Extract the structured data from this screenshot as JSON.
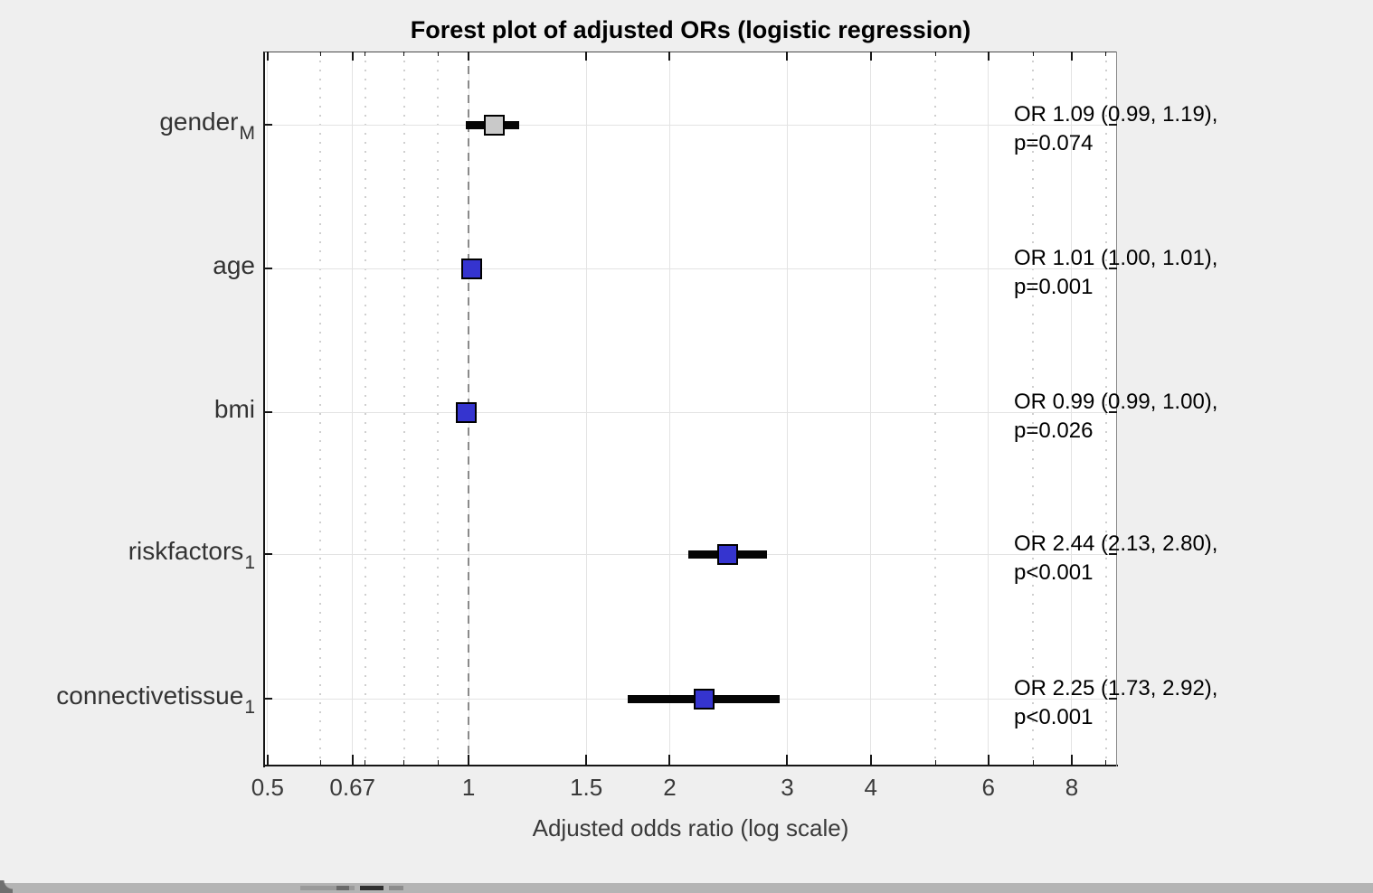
{
  "chart_data": {
    "type": "scatter",
    "subtype": "forest-plot",
    "title": "Forest plot of adjusted ORs (logistic regression)",
    "xlabel": "Adjusted odds ratio (log scale)",
    "ylabel": "",
    "x_scale": "log",
    "xlim": [
      0.494,
      9.35
    ],
    "grid": true,
    "x_major_ticks": [
      0.5,
      0.67,
      1,
      1.5,
      2,
      3,
      4,
      6,
      8
    ],
    "x_major_tick_labels": [
      "0.5",
      "0.67",
      "1",
      "1.5",
      "2",
      "3",
      "4",
      "6",
      "8"
    ],
    "x_minor_ticks": [
      0.6,
      0.7,
      0.8,
      0.9,
      5,
      7,
      9
    ],
    "reference_line_x": 1,
    "rows": [
      {
        "label": "gender",
        "label_subscript": "M",
        "or": 1.09,
        "ci_low": 0.99,
        "ci_high": 1.19,
        "annotation_line1": "OR 1.09 (0.99, 1.19),",
        "annotation_line2": "p=0.074",
        "marker_color": "#c9c9c9"
      },
      {
        "label": "age",
        "label_subscript": "",
        "or": 1.01,
        "ci_low": 1.0,
        "ci_high": 1.01,
        "annotation_line1": "OR 1.01 (1.00, 1.01),",
        "annotation_line2": "p=0.001",
        "marker_color": "#3534cf"
      },
      {
        "label": "bmi",
        "label_subscript": "",
        "or": 0.99,
        "ci_low": 0.99,
        "ci_high": 1.0,
        "annotation_line1": "OR 0.99 (0.99, 1.00),",
        "annotation_line2": "p=0.026",
        "marker_color": "#3534cf"
      },
      {
        "label": "riskfactors",
        "label_subscript": "1",
        "or": 2.44,
        "ci_low": 2.13,
        "ci_high": 2.8,
        "annotation_line1": "OR 2.44 (2.13, 2.80),",
        "annotation_line2": "p<0.001",
        "marker_color": "#3534cf"
      },
      {
        "label": "connectivetissue",
        "label_subscript": "1",
        "or": 2.25,
        "ci_low": 1.73,
        "ci_high": 2.92,
        "annotation_line1": "OR 2.25 (1.73, 2.92),",
        "annotation_line2": "p<0.001",
        "marker_color": "#3534cf"
      }
    ],
    "colors": {
      "figure_background": "#efefef",
      "plot_background": "#ffffff",
      "ci_bar": "#050505",
      "marker_blue": "#3534cf",
      "marker_gray": "#c9c9c9",
      "grid_major": "#e3e3e3",
      "reference_line": "#8a8a8a",
      "axis": "#151515"
    },
    "legend": null
  }
}
